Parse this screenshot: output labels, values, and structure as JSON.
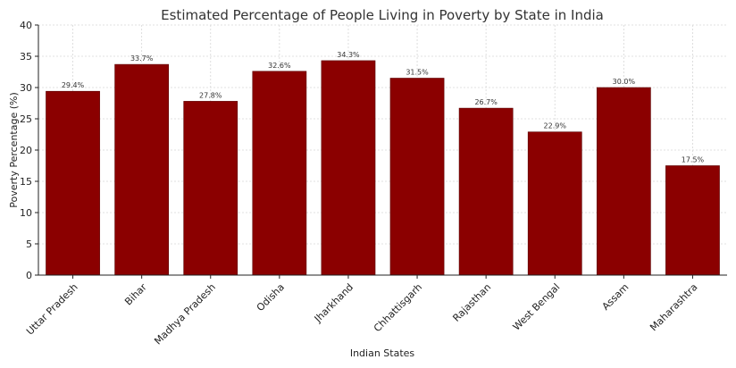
{
  "chart_data": {
    "type": "bar",
    "title": "Estimated Percentage of People Living in Poverty by State in India",
    "xlabel": "Indian States",
    "ylabel": "Poverty Percentage (%)",
    "categories": [
      "Uttar Pradesh",
      "Bihar",
      "Madhya Pradesh",
      "Odisha",
      "Jharkhand",
      "Chhattisgarh",
      "Rajasthan",
      "West Bengal",
      "Assam",
      "Maharashtra"
    ],
    "values": [
      29.4,
      33.7,
      27.8,
      32.6,
      34.3,
      31.5,
      26.7,
      22.9,
      30.0,
      17.5
    ],
    "data_labels": [
      "29.4%",
      "33.7%",
      "27.8%",
      "32.6%",
      "34.3%",
      "31.5%",
      "26.7%",
      "22.9%",
      "30.0%",
      "17.5%"
    ],
    "ylim": [
      0,
      40
    ],
    "yticks": [
      0,
      5,
      10,
      15,
      20,
      25,
      30,
      35,
      40
    ],
    "grid": true,
    "bar_color": "#8b0000"
  }
}
